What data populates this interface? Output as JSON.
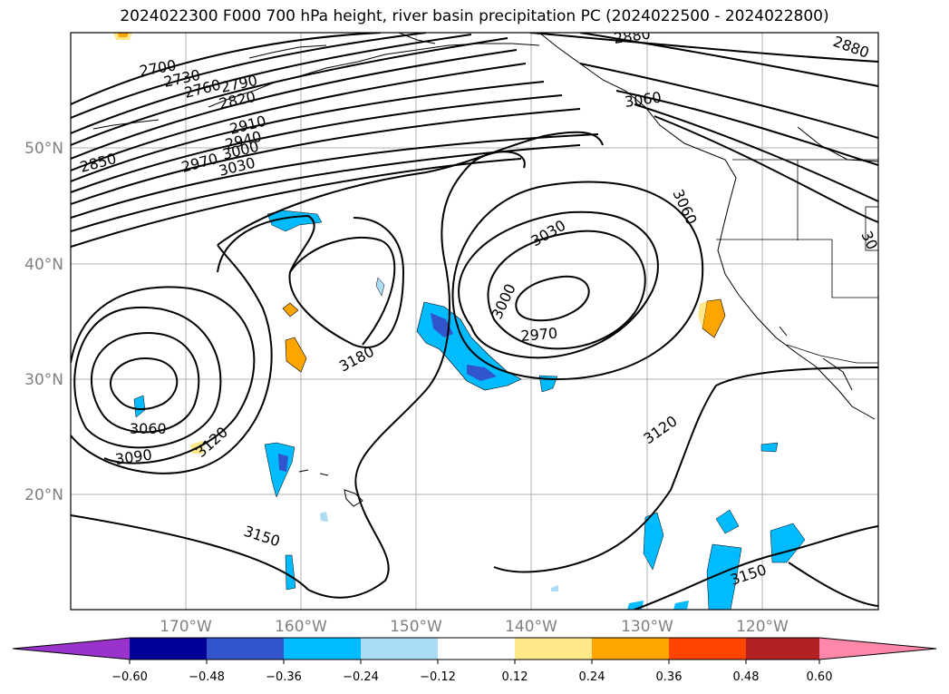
{
  "title": "2024022300 F000 700 hPa height, river basin precipitation PC (2024022500 - 2024022800)",
  "latitude_labels": [
    "50°N",
    "40°N",
    "30°N",
    "20°N"
  ],
  "longitude_labels": [
    "170°W",
    "160°W",
    "150°W",
    "140°W",
    "130°W",
    "120°W"
  ],
  "contour_labels": [
    "2700",
    "2730",
    "2760",
    "2790",
    "2820",
    "2850",
    "2880",
    "2880",
    "2910",
    "2940",
    "2970",
    "3000",
    "3030",
    "3060",
    "3030",
    "3060",
    "3000",
    "2970",
    "3180",
    "3060",
    "3090",
    "3120",
    "3120",
    "3150",
    "3150",
    "30"
  ],
  "colorbar": {
    "ticks": [
      "−0.60",
      "−0.48",
      "−0.36",
      "−0.24",
      "−0.12",
      "0.12",
      "0.24",
      "0.36",
      "0.48",
      "0.60"
    ],
    "colors": [
      "#9933cc",
      "#000099",
      "#3355cc",
      "#00bbff",
      "#aaddf5",
      "#ffffff",
      "#ffe88a",
      "#ffa500",
      "#ff4500",
      "#b22222",
      "#ff88aa"
    ]
  }
}
